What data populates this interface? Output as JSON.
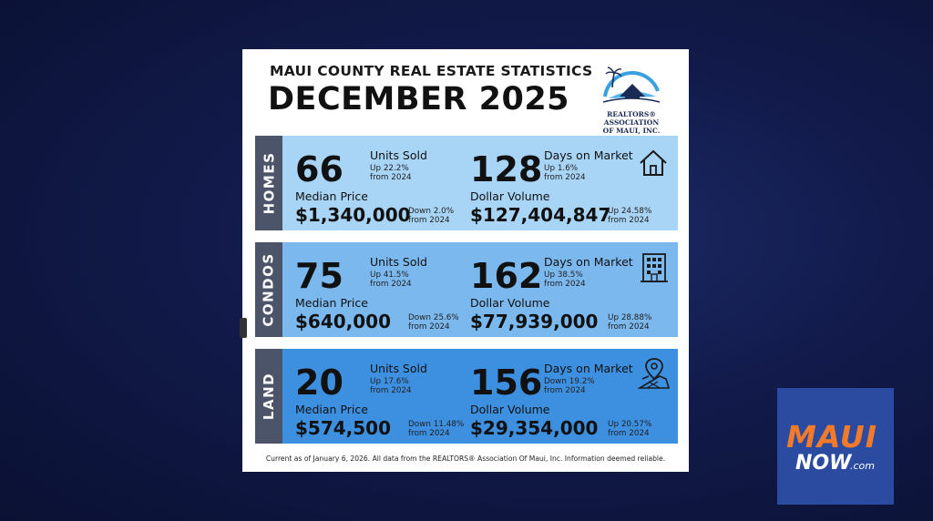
{
  "header": {
    "subtitle": "MAUI COUNTY REAL ESTATE STATISTICS",
    "title": "DECEMBER 2025",
    "logo_line1": "REALTORS® ASSOCIATION",
    "logo_line2": "OF MAUI, INC."
  },
  "sections": [
    {
      "label": "HOMES",
      "color": "#a8d4f5",
      "icon": "house-icon",
      "units_sold": "66",
      "units_label": "Units Sold",
      "units_change": "Up 22.2%",
      "units_from": "from 2024",
      "days": "128",
      "days_label": "Days on Market",
      "days_change": "Up 1.6%",
      "days_from": "from 2024",
      "median_label": "Median Price",
      "median": "$1,340,000",
      "median_change": "Down 2.0%",
      "median_from": "from 2024",
      "volume_label": "Dollar Volume",
      "volume": "$127,404,847",
      "volume_change": "Up 24.58%",
      "volume_from": "from 2024"
    },
    {
      "label": "CONDOS",
      "color": "#7bb8ee",
      "icon": "condo-building-icon",
      "units_sold": "75",
      "units_label": "Units Sold",
      "units_change": "Up 41.5%",
      "units_from": "from 2024",
      "days": "162",
      "days_label": "Days on Market",
      "days_change": "Up 38.5%",
      "days_from": "from 2024",
      "median_label": "Median Price",
      "median": "$640,000",
      "median_change": "Down 25.6%",
      "median_from": "from 2024",
      "volume_label": "Dollar Volume",
      "volume": "$77,939,000",
      "volume_change": "Up 28.88%",
      "volume_from": "from 2024"
    },
    {
      "label": "LAND",
      "color": "#3d8fe0",
      "icon": "map-pin-icon",
      "units_sold": "20",
      "units_label": "Units Sold",
      "units_change": "Up 17.6%",
      "units_from": "from 2024",
      "days": "156",
      "days_label": "Days on Market",
      "days_change": "Down 19.2%",
      "days_from": "from 2024",
      "median_label": "Median Price",
      "median": "$574,500",
      "median_change": "Down 11.48%",
      "median_from": "from 2024",
      "volume_label": "Dollar Volume",
      "volume": "$29,354,000",
      "volume_change": "Up 20.57%",
      "volume_from": "from 2024"
    }
  ],
  "footer": "Current as of January 6, 2026. All data from the REALTORS® Association Of Maui, Inc. Information deemed reliable.",
  "brand": {
    "maui": "MAUI",
    "now": "NOW",
    "com": ".com",
    "bg_color": "#2b4ba1",
    "accent": "#f27a2a"
  }
}
